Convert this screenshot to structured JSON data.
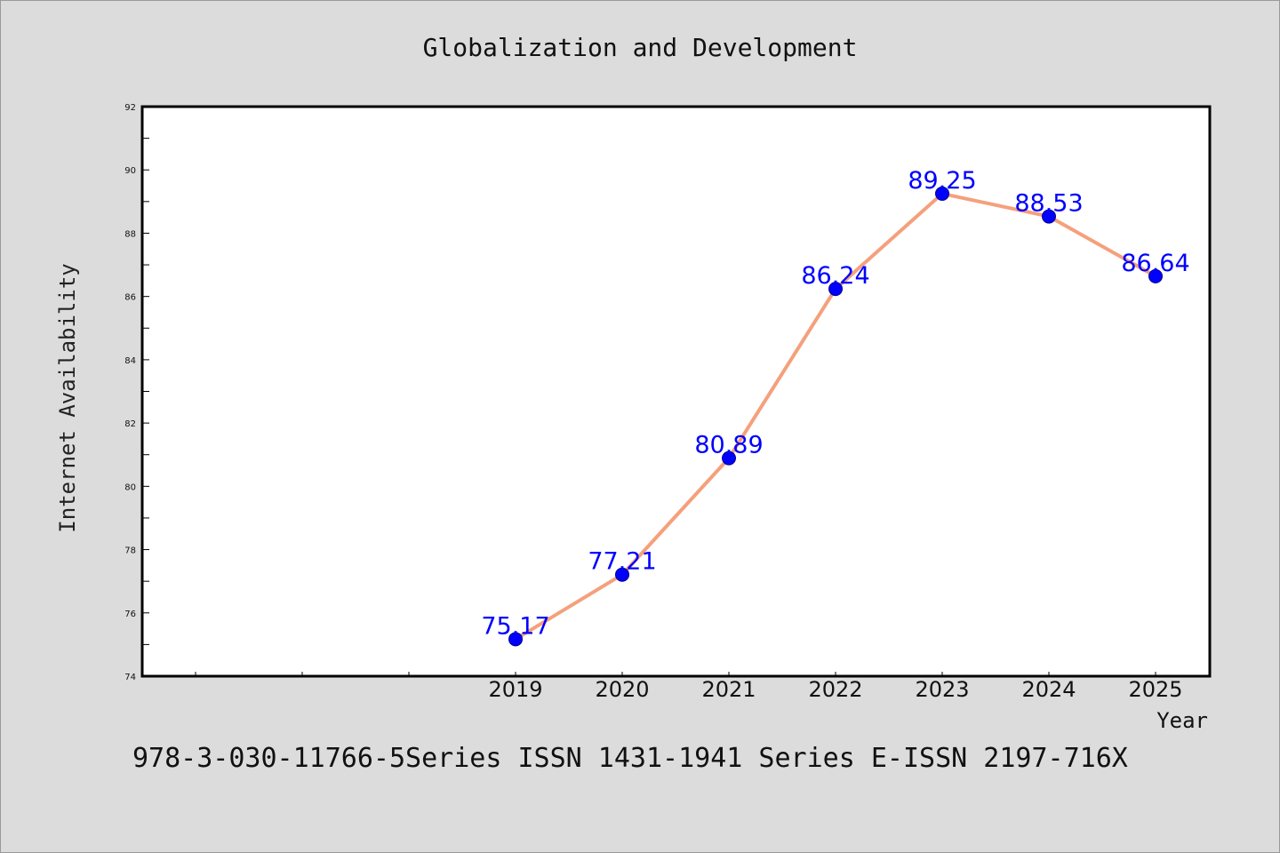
{
  "chart_data": {
    "type": "line",
    "title": "Globalization and Development",
    "xlabel": "Year",
    "ylabel": "Internet Availability",
    "x": [
      "2019",
      "2020",
      "2021",
      "2022",
      "2023",
      "2024",
      "2025"
    ],
    "series": [
      {
        "values": [
          75.17,
          77.21,
          80.89,
          86.24,
          89.25,
          88.53,
          86.64
        ]
      }
    ],
    "data_labels": [
      "75.17",
      "77.21",
      "80.89",
      "86.24",
      "89.25",
      "88.53",
      "86.64"
    ],
    "ylim": [
      74,
      92
    ],
    "yticks": [
      "74",
      "76",
      "78",
      "80",
      "82",
      "84",
      "86",
      "88",
      "90",
      "92"
    ],
    "grid": false,
    "colors": {
      "line": "#f5a07c",
      "marker": "#0000ff",
      "label": "#0000ff",
      "background": "#dcdcdc",
      "plot": "#ffffff"
    }
  },
  "footnote": "978-3-030-11766-5Series ISSN 1431-1941 Series E-ISSN 2197-716X"
}
